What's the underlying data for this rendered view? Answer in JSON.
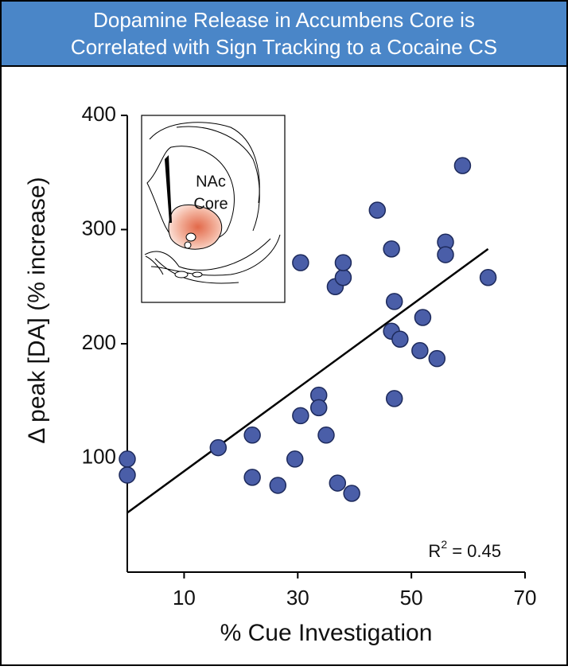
{
  "chart_data": {
    "type": "scatter",
    "title_lines": [
      "Dopamine Release in Accumbens Core is",
      "Correlated with Sign Tracking to a Cocaine CS"
    ],
    "xlabel": "% Cue Investigation",
    "ylabel": "Δ peak [DA] (% increase)",
    "xlim": [
      0,
      70
    ],
    "xticks": [
      10,
      30,
      50,
      70
    ],
    "ylim": [
      0,
      400
    ],
    "yticks": [
      100,
      200,
      300,
      400
    ],
    "color": "#4a5ea8",
    "x": [
      0,
      0,
      16,
      22,
      22,
      26.5,
      29.5,
      30.5,
      30.5,
      33.7,
      33.7,
      35,
      36.6,
      38,
      38,
      37,
      39.5,
      44,
      46.5,
      47,
      46.5,
      48,
      47,
      51.5,
      52,
      54.5,
      56,
      56,
      59,
      63.5
    ],
    "values": [
      99,
      85,
      109,
      120,
      83,
      76,
      99,
      137,
      271,
      155,
      144,
      120,
      250,
      258,
      271,
      78,
      69,
      317,
      283,
      237,
      211,
      204,
      152,
      194,
      223,
      187,
      289,
      278,
      356,
      258
    ],
    "trendline": {
      "x": [
        0,
        63.5
      ],
      "y": [
        52,
        283
      ]
    },
    "annotation": {
      "base": "R",
      "sup": "2",
      "rest": " = 0.45"
    },
    "inset_labels": [
      "NAc",
      "Core"
    ]
  }
}
